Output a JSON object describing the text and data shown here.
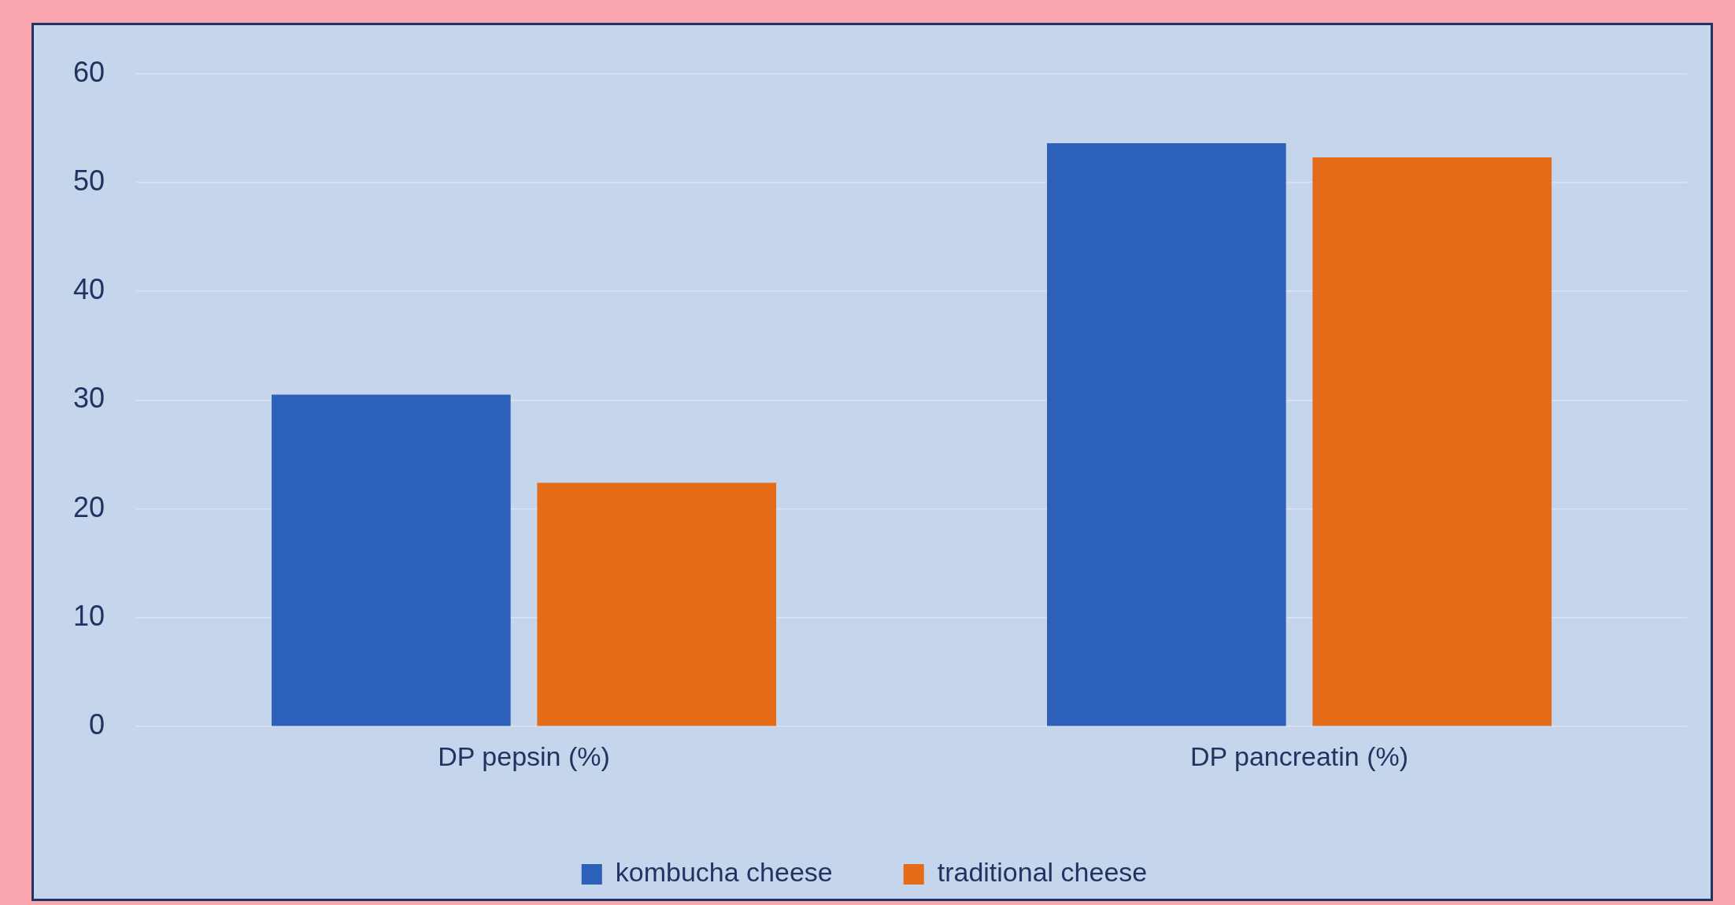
{
  "chart_data": {
    "type": "bar",
    "categories": [
      "DP pepsin (%)",
      "DP pancreatin (%)"
    ],
    "series": [
      {
        "name": "kombucha cheese",
        "color": "#2c60b9",
        "values": [
          30.5,
          53.6
        ]
      },
      {
        "name": "traditional cheese",
        "color": "#e46b17",
        "values": [
          22.4,
          52.3
        ]
      }
    ],
    "ylim": [
      0,
      60
    ],
    "yticks": [
      0,
      10,
      20,
      30,
      40,
      50,
      60
    ],
    "grid": "y",
    "legend": "bottom"
  }
}
